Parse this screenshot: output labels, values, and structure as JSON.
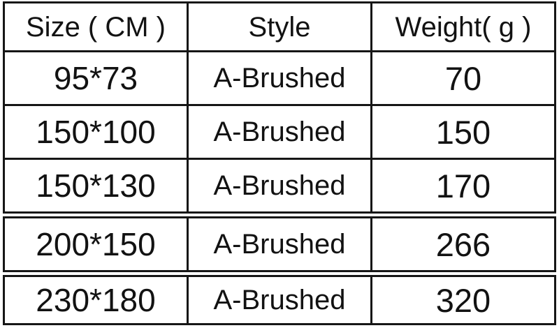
{
  "chart_data": {
    "type": "table",
    "columns": [
      "Size ( CM )",
      "Style",
      "Weight( g )"
    ],
    "rows": [
      [
        "95*73",
        "A-Brushed",
        "70"
      ],
      [
        "150*100",
        "A-Brushed",
        "150"
      ],
      [
        "150*130",
        "A-Brushed",
        "170"
      ],
      [
        "200*150",
        "A-Brushed",
        "266"
      ],
      [
        "230*180",
        "A-Brushed",
        "320"
      ]
    ]
  },
  "colors": {
    "border": "#161616",
    "text": "#121212",
    "background": "#ffffff"
  }
}
